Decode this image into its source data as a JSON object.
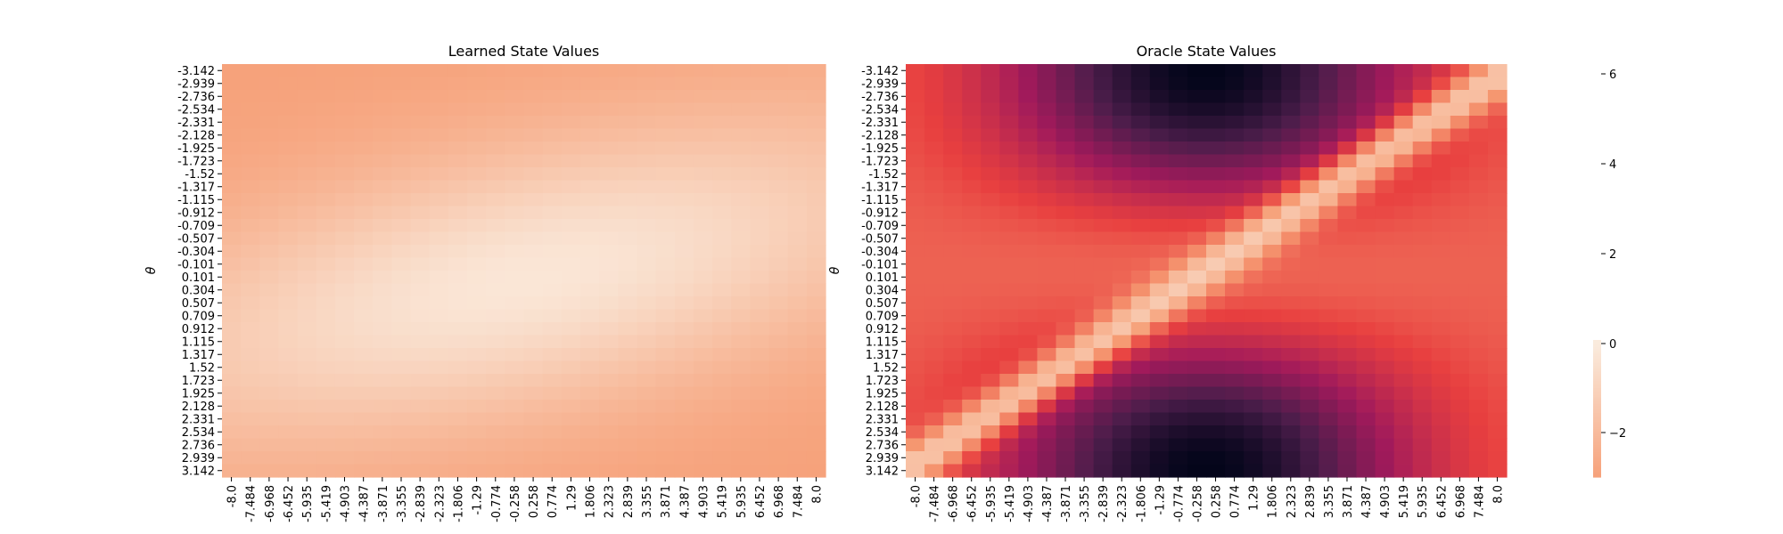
{
  "chart_data": [
    {
      "type": "heatmap",
      "title": "Learned State Values",
      "xlabel": "",
      "ylabel": "θ",
      "x_tick_labels": [
        "-8.0",
        "-7.484",
        "-6.968",
        "-6.452",
        "-5.935",
        "-5.419",
        "-4.903",
        "-4.387",
        "-3.871",
        "-3.355",
        "-2.839",
        "-2.323",
        "-1.806",
        "-1.29",
        "-0.774",
        "-0.258",
        "0.258",
        "0.774",
        "1.29",
        "1.806",
        "2.323",
        "2.839",
        "3.355",
        "3.871",
        "4.387",
        "4.903",
        "5.419",
        "5.935",
        "6.452",
        "6.968",
        "7.484",
        "8.0"
      ],
      "y_tick_labels": [
        "-3.142",
        "-2.939",
        "-2.736",
        "-2.534",
        "-2.331",
        "-2.128",
        "-1.925",
        "-1.723",
        "-1.52",
        "-1.317",
        "-1.115",
        "-0.912",
        "-0.709",
        "-0.507",
        "-0.304",
        "-0.101",
        "0.101",
        "0.304",
        "0.507",
        "0.709",
        "0.912",
        "1.115",
        "1.317",
        "1.52",
        "1.723",
        "1.925",
        "2.128",
        "2.331",
        "2.534",
        "2.736",
        "2.939",
        "3.142"
      ],
      "value_range": [
        -1.5,
        -0.1
      ]
    },
    {
      "type": "heatmap",
      "title": "Oracle State Values",
      "xlabel": "",
      "ylabel": "θ",
      "x_tick_labels": [
        "-8.0",
        "-7.484",
        "-6.968",
        "-6.452",
        "-5.935",
        "-5.419",
        "-4.903",
        "-4.387",
        "-3.871",
        "-3.355",
        "-2.839",
        "-2.323",
        "-1.806",
        "-1.29",
        "-0.774",
        "-0.258",
        "0.258",
        "0.774",
        "1.29",
        "1.806",
        "2.323",
        "2.839",
        "3.355",
        "3.871",
        "4.387",
        "4.903",
        "5.419",
        "5.935",
        "6.452",
        "6.968",
        "7.484",
        "8.0"
      ],
      "y_tick_labels": [
        "-3.142",
        "-2.939",
        "-2.736",
        "-2.534",
        "-2.331",
        "-2.128",
        "-1.925",
        "-1.723",
        "-1.52",
        "-1.317",
        "-1.115",
        "-0.912",
        "-0.709",
        "-0.507",
        "-0.304",
        "-0.101",
        "0.101",
        "0.304",
        "0.507",
        "0.709",
        "0.912",
        "1.115",
        "1.317",
        "1.52",
        "1.723",
        "1.925",
        "2.128",
        "2.331",
        "2.534",
        "2.736",
        "2.939",
        "3.142"
      ],
      "value_range": [
        -8,
        -0.3
      ]
    }
  ],
  "colorbar": {
    "tick_labels": [
      "6",
      "4",
      "2",
      "0",
      "−2"
    ],
    "colormap": "rocket",
    "colors": [
      "#03051a",
      "#4c1d4b",
      "#a11a5b",
      "#e83f3f",
      "#f69c73",
      "#faebdd"
    ]
  }
}
